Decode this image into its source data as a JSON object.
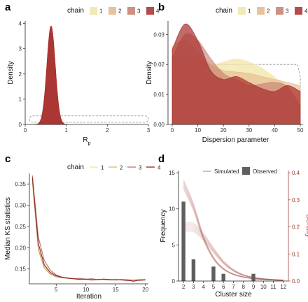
{
  "colors": {
    "chain1": "#F2E4A7",
    "chain2": "#E3B98C",
    "chain3": "#C57C6E",
    "chain4": "#A72D2C",
    "bar": "#5F5F5F",
    "density_axis": "#A03A35",
    "prior_dash": "#8A8A8A"
  },
  "chart_data": [
    {
      "panel": "a",
      "type": "area",
      "xlabel": "R_p",
      "ylabel": "Density",
      "xlim": [
        0,
        3
      ],
      "ylim": [
        0,
        4.1
      ],
      "xticks": [
        "0",
        "1",
        "2",
        "3"
      ],
      "yticks": [
        "0",
        "1",
        "2",
        "3",
        "4"
      ],
      "legend": {
        "title": "chain",
        "labels": [
          "1",
          "2",
          "3",
          "4"
        ],
        "placement": "top-right"
      },
      "series": [
        {
          "name": "1",
          "mean": 0.63,
          "sd": 0.102,
          "peak": 3.9
        },
        {
          "name": "2",
          "mean": 0.63,
          "sd": 0.102,
          "peak": 3.9
        },
        {
          "name": "3",
          "mean": 0.63,
          "sd": 0.102,
          "peak": 3.9
        },
        {
          "name": "4",
          "mean": 0.63,
          "sd": 0.102,
          "peak": 3.9
        }
      ],
      "prior": {
        "shape": "uniform",
        "from": 0.1,
        "to": 3,
        "density": 0.34
      }
    },
    {
      "panel": "b",
      "type": "area",
      "xlabel": "Dispersion parameter",
      "ylabel": "Density",
      "xlim": [
        0,
        50
      ],
      "ylim": [
        0,
        0.0345
      ],
      "xticks": [
        "0",
        "10",
        "20",
        "30",
        "40",
        "50"
      ],
      "yticks": [
        "0.00",
        "0.01",
        "0.02",
        "0.03"
      ],
      "legend": {
        "title": "chain",
        "labels": [
          "1",
          "2",
          "3",
          "4"
        ],
        "placement": "top"
      },
      "series": [
        {
          "name": "1",
          "x": [
            0,
            5,
            10,
            15,
            20,
            25,
            30,
            35,
            40,
            45,
            50
          ],
          "y": [
            0.0225,
            0.023,
            0.022,
            0.02,
            0.021,
            0.022,
            0.021,
            0.019,
            0.016,
            0.013,
            0.011
          ]
        },
        {
          "name": "2",
          "x": [
            0,
            5,
            10,
            15,
            20,
            25,
            30,
            35,
            40,
            45,
            50
          ],
          "y": [
            0.026,
            0.028,
            0.024,
            0.02,
            0.018,
            0.0175,
            0.017,
            0.016,
            0.015,
            0.014,
            0.013
          ]
        },
        {
          "name": "3",
          "x": [
            0,
            5,
            10,
            15,
            20,
            25,
            30,
            35,
            40,
            45,
            50
          ],
          "y": [
            0.022,
            0.03,
            0.028,
            0.022,
            0.017,
            0.015,
            0.013,
            0.0135,
            0.014,
            0.0125,
            0.006
          ]
        },
        {
          "name": "4",
          "x": [
            0,
            5,
            10,
            15,
            20,
            25,
            30,
            35,
            40,
            45,
            50
          ],
          "y": [
            0.025,
            0.0335,
            0.028,
            0.018,
            0.015,
            0.016,
            0.014,
            0.012,
            0.011,
            0.013,
            0.011
          ]
        }
      ],
      "prior": {
        "shape": "uniform",
        "from": 0,
        "to": 50,
        "density": 0.02
      }
    },
    {
      "panel": "c",
      "type": "line",
      "xlabel": "Iteration",
      "ylabel": "Median KS statistics",
      "xlim": [
        0.5,
        20.5
      ],
      "ylim": [
        0.115,
        0.375
      ],
      "xticks": [
        "5",
        "10",
        "15",
        "20"
      ],
      "yticks": [
        "0.15",
        "0.20",
        "0.25",
        "0.30",
        "0.35"
      ],
      "legend": {
        "title": "chain",
        "labels": [
          "1",
          "2",
          "3",
          "4"
        ],
        "placement": "top"
      },
      "x": [
        1,
        2,
        3,
        4,
        5,
        6,
        7,
        8,
        9,
        10,
        11,
        12,
        13,
        14,
        15,
        16,
        17,
        18,
        19,
        20
      ],
      "series": [
        {
          "name": "1",
          "values": [
            0.362,
            0.2,
            0.157,
            0.14,
            0.133,
            0.13,
            0.128,
            0.126,
            0.127,
            0.125,
            0.126,
            0.125,
            0.126,
            0.125,
            0.126,
            0.124,
            0.125,
            0.124,
            0.124,
            0.124
          ]
        },
        {
          "name": "2",
          "values": [
            0.355,
            0.195,
            0.152,
            0.138,
            0.131,
            0.129,
            0.128,
            0.127,
            0.126,
            0.126,
            0.125,
            0.126,
            0.125,
            0.124,
            0.125,
            0.125,
            0.124,
            0.124,
            0.125,
            0.124
          ]
        },
        {
          "name": "3",
          "values": [
            0.37,
            0.225,
            0.17,
            0.147,
            0.136,
            0.131,
            0.129,
            0.127,
            0.128,
            0.126,
            0.127,
            0.125,
            0.126,
            0.124,
            0.125,
            0.124,
            0.122,
            0.124,
            0.123,
            0.124
          ]
        },
        {
          "name": "4",
          "values": [
            0.365,
            0.21,
            0.16,
            0.142,
            0.134,
            0.13,
            0.128,
            0.127,
            0.125,
            0.126,
            0.124,
            0.125,
            0.126,
            0.125,
            0.124,
            0.125,
            0.124,
            0.121,
            0.124,
            0.125
          ]
        }
      ]
    },
    {
      "panel": "d",
      "type": "bar",
      "xlabel": "Cluster size",
      "ylabel": "Frequency",
      "y2label": "Density",
      "xlim": [
        1.5,
        12.5
      ],
      "ylim": [
        0,
        15.3
      ],
      "y2lim": [
        0,
        0.408
      ],
      "xticks": [
        "2",
        "3",
        "4",
        "5",
        "6",
        "7",
        "8",
        "9",
        "10",
        "11",
        "12"
      ],
      "yticks": [
        "0",
        "5",
        "10",
        "15"
      ],
      "y2ticks": [
        "0.0",
        "0.1",
        "0.2",
        "0.3",
        "0.4"
      ],
      "legend": {
        "labels": [
          "Simulated",
          "Observed"
        ],
        "placement": "top"
      },
      "categories": [
        2,
        3,
        5,
        6,
        9
      ],
      "values": [
        11,
        3,
        2,
        1,
        1
      ],
      "simulated_upper": {
        "x": [
          2,
          3,
          4,
          5,
          6,
          7,
          8,
          9,
          10,
          11,
          12
        ],
        "density": [
          0.36,
          0.275,
          0.16,
          0.085,
          0.045,
          0.025,
          0.015,
          0.009,
          0.006,
          0.004,
          0.003
        ]
      },
      "simulated_lower": {
        "x": [
          2,
          3,
          4,
          5,
          6,
          7,
          8,
          9,
          10,
          11,
          12
        ],
        "density": [
          0.2,
          0.2,
          0.165,
          0.115,
          0.07,
          0.04,
          0.022,
          0.013,
          0.008,
          0.005,
          0.003
        ]
      }
    }
  ],
  "panels": {
    "a": {
      "letter": "a",
      "legend_title": "chain"
    },
    "b": {
      "letter": "b",
      "legend_title": "chain"
    },
    "c": {
      "letter": "c",
      "legend_title": "chain"
    },
    "d": {
      "letter": "d",
      "legend_simulated": "Simulated",
      "legend_observed": "Observed"
    }
  }
}
